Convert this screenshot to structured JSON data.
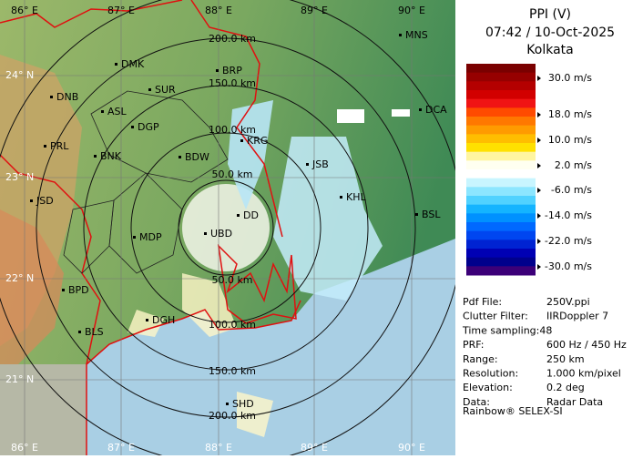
{
  "header": {
    "title": "PPI (V)",
    "time": "07:42 / 10-Oct-2025",
    "site": "Kolkata"
  },
  "legend": {
    "colors": [
      "#7a0000",
      "#960000",
      "#b40000",
      "#d20000",
      "#f01414",
      "#ff4b00",
      "#ff7800",
      "#ff9b00",
      "#ffbe00",
      "#ffe100",
      "#fff5a0",
      "#fffff0",
      "#ffffff",
      "#c8f5ff",
      "#8ce6ff",
      "#50d2ff",
      "#14b4ff",
      "#0091ff",
      "#0069ff",
      "#0046f0",
      "#0023d2",
      "#0000b4",
      "#00008c",
      "#3c0078"
    ],
    "labels": [
      "30.0 m/s",
      "18.0 m/s",
      "10.0 m/s",
      "2.0 m/s",
      "-6.0 m/s",
      "-14.0 m/s",
      "-22.0 m/s",
      "-30.0 m/s"
    ]
  },
  "info": {
    "rows": [
      [
        "Pdf File:",
        "250V.ppi"
      ],
      [
        "Clutter Filter:",
        "IIRDoppler 7"
      ],
      [
        "Time sampling:48"
      ],
      [
        "PRF:",
        "600 Hz / 450 Hz"
      ],
      [
        "Range:",
        "250 km"
      ],
      [
        "Resolution:",
        "1.000 km/pixel"
      ],
      [
        "Elevation:",
        "0.2 deg"
      ],
      [
        "Data:",
        "Radar Data"
      ]
    ]
  },
  "footer": "Rainbow® SELEX-SI",
  "map": {
    "lon_labels": [
      "86° E",
      "87° E",
      "88° E",
      "89° E",
      "90° E"
    ],
    "lat_labels": [
      "24° N",
      "23° N",
      "22° N",
      "21° N"
    ],
    "range_labels": [
      "50.0 km",
      "100.0 km",
      "150.0 km",
      "200.0 km"
    ],
    "cities": [
      "MNS",
      "DMK",
      "BRP",
      "DNB",
      "SUR",
      "ASL",
      "DGP",
      "DCA",
      "PRL",
      "BNK",
      "KRG",
      "BDW",
      "JSB",
      "KHL",
      "JSD",
      "BSL",
      "DD",
      "UBD",
      "MDP",
      "BPD",
      "DGH",
      "BLS",
      "SHD"
    ]
  }
}
